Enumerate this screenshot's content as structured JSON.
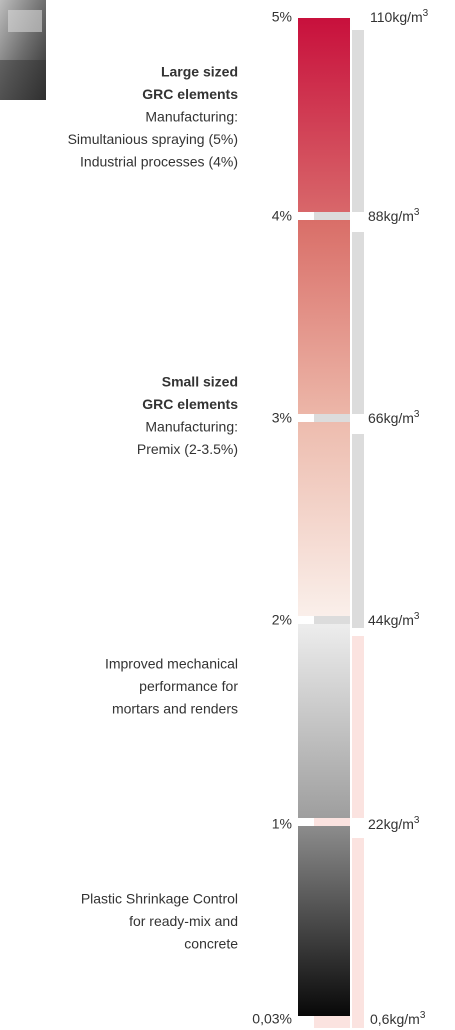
{
  "scale": {
    "left": [
      "5%",
      "4%",
      "3%",
      "2%",
      "1%",
      "0,03%"
    ],
    "right": [
      {
        "text": "110kg/m",
        "sup": "3"
      },
      {
        "text": "88kg/m",
        "sup": "3"
      },
      {
        "text": "66kg/m",
        "sup": "3"
      },
      {
        "text": "44kg/m",
        "sup": "3"
      },
      {
        "text": "22kg/m",
        "sup": "3"
      },
      {
        "text": "0,6kg/m",
        "sup": "3"
      }
    ]
  },
  "blocks": [
    {
      "lines": [
        {
          "text": "Large sized",
          "bold": true
        },
        {
          "text": "GRC elements",
          "bold": true
        },
        {
          "text": "Manufacturing:",
          "bold": false
        },
        {
          "text": "Simultanious spraying (5%)",
          "bold": false
        },
        {
          "text": "Industrial processes (4%)",
          "bold": false
        }
      ]
    },
    {
      "lines": [
        {
          "text": "Small sized",
          "bold": true
        },
        {
          "text": "GRC elements",
          "bold": true
        },
        {
          "text": "Manufacturing:",
          "bold": false
        },
        {
          "text": "Premix (2-3.5%)",
          "bold": false
        }
      ]
    },
    {
      "lines": [
        {
          "text": "Improved mechanical",
          "bold": false
        },
        {
          "text": "performance for",
          "bold": false
        },
        {
          "text": "mortars and renders",
          "bold": false
        }
      ]
    },
    {
      "lines": [
        {
          "text": "Plastic Shrinkage Control",
          "bold": false
        },
        {
          "text": "for ready-mix and",
          "bold": false
        },
        {
          "text": "concrete",
          "bold": false
        }
      ]
    }
  ]
}
